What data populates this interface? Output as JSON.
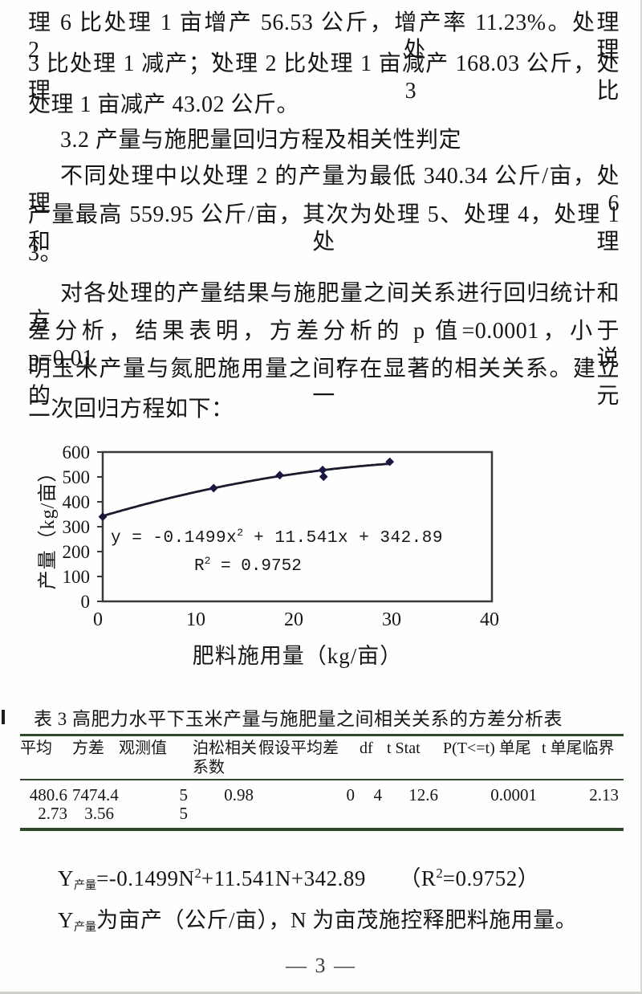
{
  "page": {
    "number": "— 3 —"
  },
  "body": {
    "p1_lines": [
      "理 6 比处理 1 亩增产 56.53 公斤，增产率 11.23%。处理 2、处理",
      "3 比处理 1 减产；处理 2 比处理 1 亩减产 168.03 公斤，处理 3 比",
      "处理 1 亩减产 43.02 公斤。"
    ],
    "heading": "3.2 产量与施肥量回归方程及相关性判定",
    "p2_lines": [
      "不同处理中以处理 2 的产量为最低 340.34 公斤/亩，处理 6",
      "产量最高 559.95 公斤/亩，其次为处理 5、处理 4，处理 1 和处理",
      "3。"
    ],
    "p3_lines": [
      "对各处理的产量结果与施肥量之间关系进行回归统计和方",
      "差分析，结果表明，方差分析的 p 值=0.0001，小于 p=0.01，说",
      "明玉米产量与氮肥施用量之间存在显著的相关关系。建立的一元",
      "二次回归方程如下："
    ]
  },
  "chart_data": {
    "type": "scatter",
    "title": "",
    "xlabel": "肥料施用量（kg/亩）",
    "ylabel": "产量（kg/亩）",
    "xlim": [
      0,
      40
    ],
    "ylim": [
      0,
      600
    ],
    "xticks": [
      0,
      10,
      20,
      30,
      40
    ],
    "yticks": [
      0,
      100,
      200,
      300,
      400,
      500,
      600
    ],
    "grid": false,
    "legend": false,
    "points": [
      [
        0,
        340
      ],
      [
        11.4,
        455
      ],
      [
        18.2,
        507
      ],
      [
        22.6,
        528
      ],
      [
        22.7,
        501
      ],
      [
        29.5,
        561
      ]
    ],
    "trendline": {
      "type": "quadratic",
      "a": -0.1499,
      "b": 11.541,
      "c": 342.89,
      "x_range": [
        0,
        29.5
      ]
    },
    "equation_label": "y = -0.1499x^{2} + 11.541x + 342.89",
    "r2_label": "R^{2} = 0.9752",
    "point_color": "#181840",
    "line_color": "#1b1b2e"
  },
  "table": {
    "caption": "表 3 高肥力水平下玉米产量与施肥量之间相关关系的方差分析表",
    "headers": [
      "平均",
      "方差",
      "观测值",
      "泊松相关系数",
      "假设平均差",
      "df",
      "t Stat",
      "P(T<=t) 单尾",
      "t 单尾临界"
    ],
    "rows": [
      [
        "480.6",
        "7474.4",
        "5",
        "0.98",
        "0",
        "4",
        "12.6",
        "0.0001",
        "2.13"
      ],
      [
        "2.73",
        "3.56",
        "5",
        "",
        "",
        "",
        "",
        "",
        ""
      ]
    ]
  },
  "equations": {
    "line1": "Y_{产量}=-0.1499N^{2}+11.541N+342.89　　（R^{2}=0.9752）",
    "line2": "Y_{产量}为亩产（公斤/亩），N 为亩茂施控释肥料施用量。"
  }
}
